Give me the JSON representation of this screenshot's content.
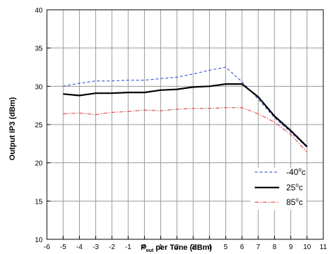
{
  "chart_data": {
    "type": "line",
    "xlabel_main": "P",
    "xlabel_sub": "out",
    "xlabel_rest": " per Tone (dBm)",
    "ylabel": "Output IP3 (dBm)",
    "xlim": [
      -6,
      11
    ],
    "ylim": [
      10,
      40
    ],
    "xticks": [
      -6,
      -5,
      -4,
      -3,
      -2,
      -1,
      0,
      1,
      2,
      3,
      4,
      5,
      6,
      7,
      8,
      9,
      10,
      11
    ],
    "yticks": [
      10,
      15,
      20,
      25,
      30,
      35,
      40
    ],
    "grid": true,
    "legend_position": "lower-right",
    "series": [
      {
        "name_main": "-40",
        "name_sup": "o",
        "name_tail": "c",
        "color": "#1f3fd0",
        "style": "dashed",
        "x": [
          -5,
          -4,
          -3,
          -2,
          -1,
          0,
          1,
          2,
          3,
          4,
          5,
          6,
          7,
          8,
          9,
          10
        ],
        "y": [
          30.0,
          30.4,
          30.7,
          30.7,
          30.8,
          30.8,
          31.0,
          31.2,
          31.6,
          32.1,
          32.5,
          30.6,
          28.3,
          25.9,
          24.0,
          22.0
        ]
      },
      {
        "name_main": "25",
        "name_sup": "o",
        "name_tail": "c",
        "color": "#000000",
        "style": "solid",
        "x": [
          -5,
          -4,
          -3,
          -2,
          -1,
          0,
          1,
          2,
          3,
          4,
          5,
          6,
          7,
          8,
          9,
          10
        ],
        "y": [
          29.0,
          28.8,
          29.1,
          29.1,
          29.2,
          29.2,
          29.5,
          29.6,
          29.9,
          30.0,
          30.3,
          30.3,
          28.6,
          26.1,
          24.2,
          22.1
        ]
      },
      {
        "name_main": "85",
        "name_sup": "o",
        "name_tail": "c",
        "color": "#e03030",
        "style": "dashdot",
        "x": [
          -5,
          -4,
          -3,
          -2,
          -1,
          0,
          1,
          2,
          3,
          4,
          5,
          6,
          7,
          8,
          9,
          10
        ],
        "y": [
          26.4,
          26.5,
          26.3,
          26.6,
          26.7,
          26.9,
          26.8,
          27.0,
          27.1,
          27.1,
          27.2,
          27.2,
          26.4,
          25.3,
          23.7,
          21.4
        ]
      }
    ]
  }
}
